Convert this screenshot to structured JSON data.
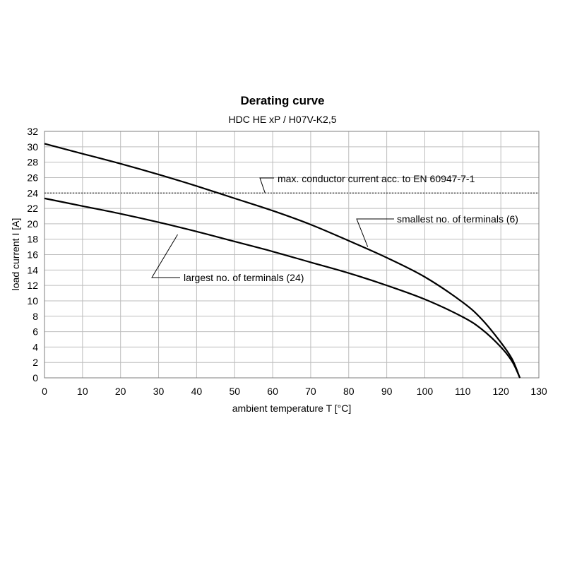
{
  "chart_data": {
    "type": "line",
    "title": "Derating curve",
    "subtitle": "HDC HE xP / H07V-K2,5",
    "xlabel": "ambient temperature T [°C]",
    "ylabel": "load current I [A]",
    "xlim": [
      0,
      130
    ],
    "ylim": [
      0,
      32
    ],
    "xticks": [
      0,
      10,
      20,
      30,
      40,
      50,
      60,
      70,
      80,
      90,
      100,
      110,
      120,
      130
    ],
    "yticks": [
      0,
      2,
      4,
      6,
      8,
      10,
      12,
      14,
      16,
      18,
      20,
      22,
      24,
      26,
      28,
      30,
      32
    ],
    "grid": true,
    "series": [
      {
        "name": "smallest no. of terminals (6)",
        "x": [
          0,
          10,
          20,
          30,
          40,
          50,
          60,
          70,
          80,
          90,
          100,
          110,
          115,
          120,
          123,
          125
        ],
        "y": [
          30.4,
          29.1,
          27.8,
          26.4,
          24.9,
          23.3,
          21.7,
          19.9,
          17.8,
          15.6,
          13.1,
          9.8,
          7.6,
          4.6,
          2.4,
          0
        ]
      },
      {
        "name": "largest no. of terminals (24)",
        "x": [
          0,
          10,
          20,
          30,
          40,
          50,
          60,
          70,
          80,
          90,
          100,
          110,
          115,
          120,
          123,
          125
        ],
        "y": [
          23.3,
          22.3,
          21.3,
          20.2,
          19.0,
          17.7,
          16.4,
          15.0,
          13.6,
          12.0,
          10.2,
          7.9,
          6.3,
          4.0,
          2.1,
          0
        ]
      }
    ],
    "reference_line": {
      "y": 24,
      "label": "max. conductor current acc. to EN 60947-7-1"
    },
    "annotations": [
      {
        "text": "max. conductor current acc. to EN 60947-7-1",
        "target_x": 58,
        "target_y": 24
      },
      {
        "text": "smallest no. of terminals (6)",
        "target_x": 85,
        "target_y": 17
      },
      {
        "text": "largest no. of terminals (24)",
        "target_x": 35,
        "target_y": 18.6
      }
    ]
  }
}
